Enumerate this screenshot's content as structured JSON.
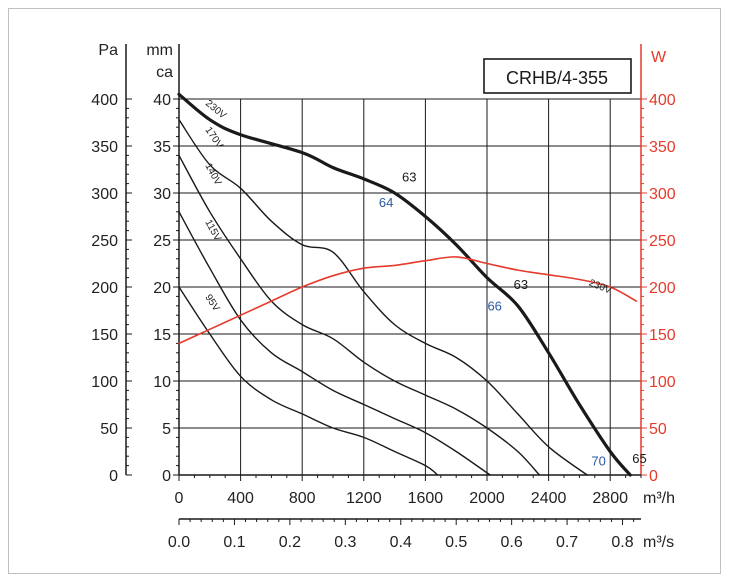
{
  "chart_data": {
    "type": "line",
    "title": "CRHB/4-355",
    "axes": {
      "left_units": "Pa",
      "mmca_units_line1": "mm",
      "mmca_units_line2": "ca",
      "right_units": "W",
      "bottom_units_m3h": "m³/h",
      "bottom_units_m3s": "m³/s",
      "pa_ylim": [
        0,
        400
      ],
      "pa_ticks": [
        "0",
        "50",
        "100",
        "150",
        "200",
        "250",
        "300",
        "350",
        "400"
      ],
      "mmca_ticks": [
        "0",
        "5",
        "10",
        "15",
        "20",
        "25",
        "30",
        "35",
        "40"
      ],
      "w_ylim": [
        0,
        400
      ],
      "w_ticks": [
        "0",
        "50",
        "100",
        "150",
        "200",
        "250",
        "300",
        "350",
        "400"
      ],
      "m3h_xlim": [
        0,
        3000
      ],
      "m3h_ticks": [
        "0",
        "400",
        "800",
        "1200",
        "1600",
        "2000",
        "2400",
        "2800"
      ],
      "m3s_ticks": [
        "0.0",
        "0.1",
        "0.2",
        "0.3",
        "0.4",
        "0.5",
        "0.6",
        "0.7",
        "0.8"
      ],
      "grid": true
    },
    "series": [
      {
        "name": "230V",
        "color": "#1a1a1a",
        "bold": true,
        "axis": "Pa",
        "points": [
          [
            0,
            405
          ],
          [
            200,
            378
          ],
          [
            400,
            362
          ],
          [
            800,
            343
          ],
          [
            1000,
            327
          ],
          [
            1200,
            315
          ],
          [
            1400,
            300
          ],
          [
            1600,
            275
          ],
          [
            1800,
            245
          ],
          [
            2000,
            210
          ],
          [
            2200,
            180
          ],
          [
            2400,
            130
          ],
          [
            2600,
            75
          ],
          [
            2800,
            25
          ],
          [
            2930,
            0
          ]
        ]
      },
      {
        "name": "170V",
        "color": "#1a1a1a",
        "bold": false,
        "axis": "Pa",
        "points": [
          [
            0,
            378
          ],
          [
            200,
            330
          ],
          [
            400,
            305
          ],
          [
            600,
            270
          ],
          [
            800,
            245
          ],
          [
            1000,
            237
          ],
          [
            1200,
            195
          ],
          [
            1400,
            160
          ],
          [
            1600,
            140
          ],
          [
            1800,
            125
          ],
          [
            2000,
            100
          ],
          [
            2200,
            65
          ],
          [
            2400,
            30
          ],
          [
            2650,
            0
          ]
        ]
      },
      {
        "name": "140V",
        "color": "#1a1a1a",
        "bold": false,
        "axis": "Pa",
        "points": [
          [
            0,
            340
          ],
          [
            200,
            280
          ],
          [
            400,
            230
          ],
          [
            600,
            185
          ],
          [
            800,
            160
          ],
          [
            1000,
            145
          ],
          [
            1200,
            120
          ],
          [
            1400,
            100
          ],
          [
            1600,
            85
          ],
          [
            1800,
            70
          ],
          [
            2000,
            50
          ],
          [
            2200,
            25
          ],
          [
            2340,
            0
          ]
        ]
      },
      {
        "name": "115V",
        "color": "#1a1a1a",
        "bold": false,
        "axis": "Pa",
        "points": [
          [
            0,
            280
          ],
          [
            200,
            220
          ],
          [
            400,
            165
          ],
          [
            600,
            130
          ],
          [
            800,
            110
          ],
          [
            1000,
            90
          ],
          [
            1200,
            75
          ],
          [
            1400,
            60
          ],
          [
            1600,
            45
          ],
          [
            1800,
            25
          ],
          [
            2020,
            0
          ]
        ]
      },
      {
        "name": "95V",
        "color": "#1a1a1a",
        "bold": false,
        "axis": "Pa",
        "points": [
          [
            0,
            200
          ],
          [
            200,
            150
          ],
          [
            400,
            105
          ],
          [
            600,
            80
          ],
          [
            800,
            65
          ],
          [
            1000,
            50
          ],
          [
            1200,
            40
          ],
          [
            1400,
            25
          ],
          [
            1600,
            10
          ],
          [
            1680,
            0
          ]
        ]
      },
      {
        "name": "230V",
        "color": "#e53a2c",
        "bold": false,
        "axis": "W",
        "points": [
          [
            0,
            140
          ],
          [
            200,
            155
          ],
          [
            400,
            170
          ],
          [
            600,
            185
          ],
          [
            800,
            200
          ],
          [
            1000,
            212
          ],
          [
            1200,
            220
          ],
          [
            1400,
            223
          ],
          [
            1600,
            228
          ],
          [
            1800,
            232
          ],
          [
            2000,
            225
          ],
          [
            2200,
            218
          ],
          [
            2400,
            213
          ],
          [
            2600,
            208
          ],
          [
            2800,
            200
          ],
          [
            2970,
            185
          ]
        ]
      }
    ],
    "annotations": [
      {
        "text": "63",
        "x": 1495,
        "y": 312,
        "color": "#1a1a1a"
      },
      {
        "text": "64",
        "x": 1345,
        "y": 285,
        "color": "#2b5aa5"
      },
      {
        "text": "63",
        "x": 2220,
        "y": 198,
        "color": "#1a1a1a"
      },
      {
        "text": "66",
        "x": 2050,
        "y": 175,
        "color": "#2b5aa5"
      },
      {
        "text": "70",
        "x": 2725,
        "y": 10,
        "color": "#2b5aa5"
      },
      {
        "text": "65",
        "x": 2990,
        "y": 13,
        "color": "#1a1a1a"
      }
    ]
  }
}
